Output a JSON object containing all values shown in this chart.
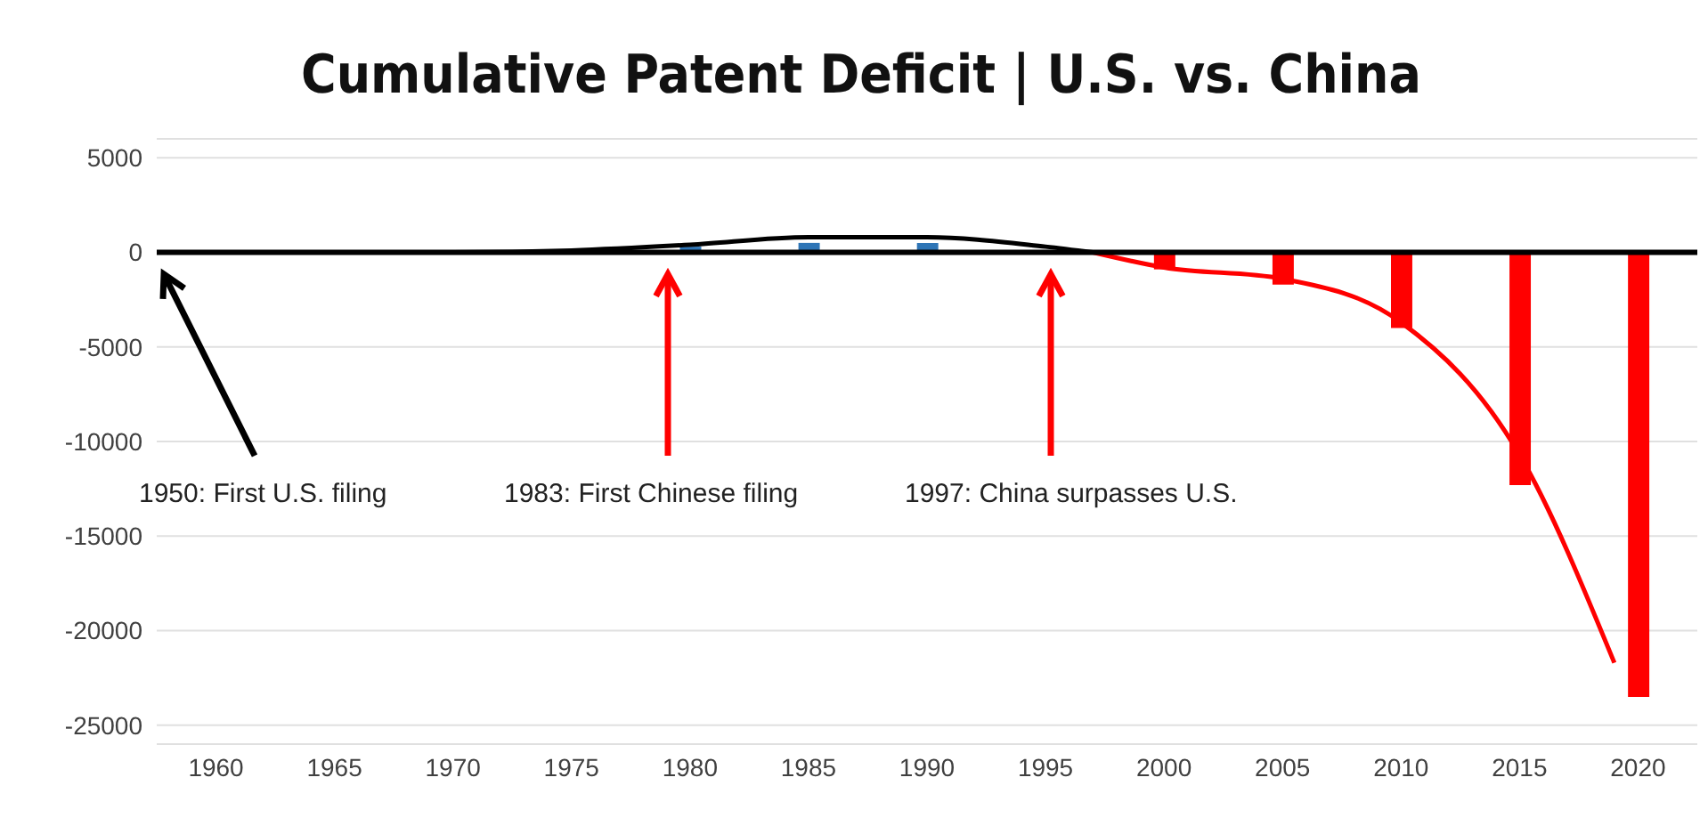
{
  "chart_data": {
    "type": "bar",
    "title": "Cumulative Patent Deficit | U.S. vs. China",
    "x": [
      1960,
      1965,
      1970,
      1975,
      1980,
      1985,
      1990,
      1995,
      2000,
      2005,
      2010,
      2015,
      2020
    ],
    "xlim": [
      1957.5,
      2022.5
    ],
    "xticks": [
      1960,
      1965,
      1970,
      1975,
      1980,
      1985,
      1990,
      1995,
      2000,
      2005,
      2010,
      2015,
      2020
    ],
    "ylim": [
      -26000,
      6000
    ],
    "yticks": [
      -25000,
      -20000,
      -15000,
      -10000,
      -5000,
      0,
      5000
    ],
    "grid": "y",
    "series": [
      {
        "values": [
          0,
          0,
          0,
          0,
          300,
          500,
          500,
          0,
          -900,
          -1700,
          -4000,
          -12300,
          -23500
        ],
        "colors": [
          "#ff0000",
          "#ff0000",
          "#ff0000",
          "#ff0000",
          "#2e75b6",
          "#2e75b6",
          "#2e75b6",
          "#ff0000",
          "#ff0000",
          "#ff0000",
          "#ff0000",
          "#ff0000",
          "#ff0000"
        ]
      },
      {
        "type": "line",
        "color": "#000000",
        "x": [
          1957.5,
          1965,
          1970,
          1975,
          1980,
          1985,
          1990,
          1995,
          1997
        ],
        "values": [
          0,
          0,
          0,
          100,
          400,
          800,
          800,
          300,
          0
        ]
      },
      {
        "type": "line",
        "color": "#ff0000",
        "x": [
          1997,
          2000,
          2005,
          2010,
          2015,
          2019
        ],
        "values": [
          0,
          -800,
          -1400,
          -3700,
          -10700,
          -21700
        ]
      }
    ],
    "ref_lines": [
      {
        "axis": "y",
        "value": 0,
        "color": "#000000"
      }
    ],
    "annotations": [
      "1950: First U.S. filing",
      "1983: First Chinese filing",
      "1997: China surpasses U.S."
    ],
    "marker": "none",
    "legend": false
  }
}
